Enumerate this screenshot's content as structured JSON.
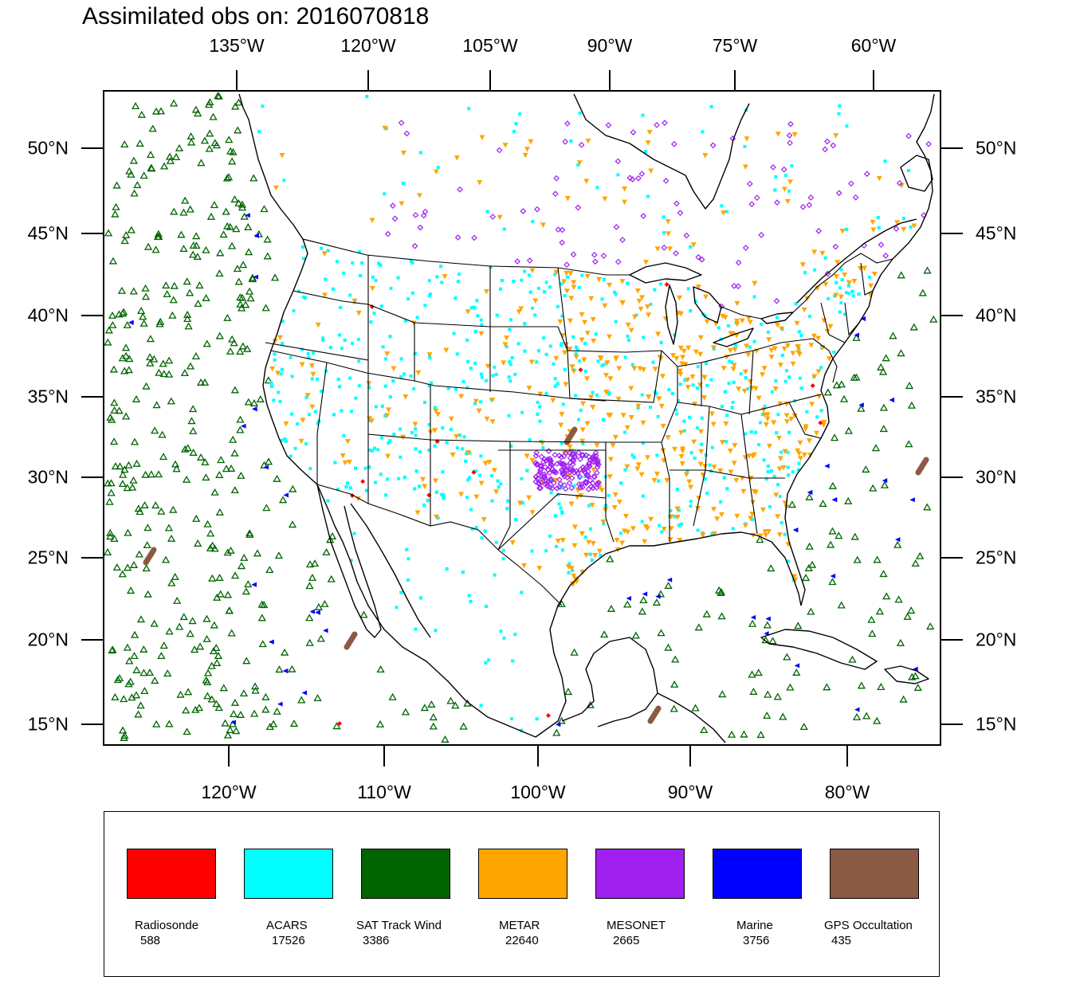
{
  "title": "Assimilated obs on: 2016070818",
  "map": {
    "top_axis_labels": [
      "135°W",
      "120°W",
      "105°W",
      "90°W",
      "75°W",
      "60°W"
    ],
    "bottom_axis_labels": [
      "120°W",
      "110°W",
      "100°W",
      "90°W",
      "80°W"
    ],
    "lat_labels": [
      "50°N",
      "45°N",
      "40°N",
      "35°N",
      "30°N",
      "25°N",
      "20°N",
      "15°N"
    ],
    "land_outline_color": "#000000"
  },
  "legend": [
    {
      "name": "Radiosonde",
      "count": "588",
      "color": "#ff0000",
      "marker": "diamond"
    },
    {
      "name": "ACARS",
      "count": "17526",
      "color": "#00ffff",
      "marker": "square"
    },
    {
      "name": "SAT Track Wind",
      "count": "3386",
      "color": "#006400",
      "marker": "triangle-up-open"
    },
    {
      "name": "METAR",
      "count": "22640",
      "color": "#ffa500",
      "marker": "triangle-down"
    },
    {
      "name": "MESONET",
      "count": "2665",
      "color": "#a020f0",
      "marker": "diamond-open"
    },
    {
      "name": "Marine",
      "count": "3756",
      "color": "#0000ff",
      "marker": "triangle-left"
    },
    {
      "name": "GPS Occultation",
      "count": "435",
      "color": "#8b5a44",
      "marker": "streak"
    }
  ]
}
